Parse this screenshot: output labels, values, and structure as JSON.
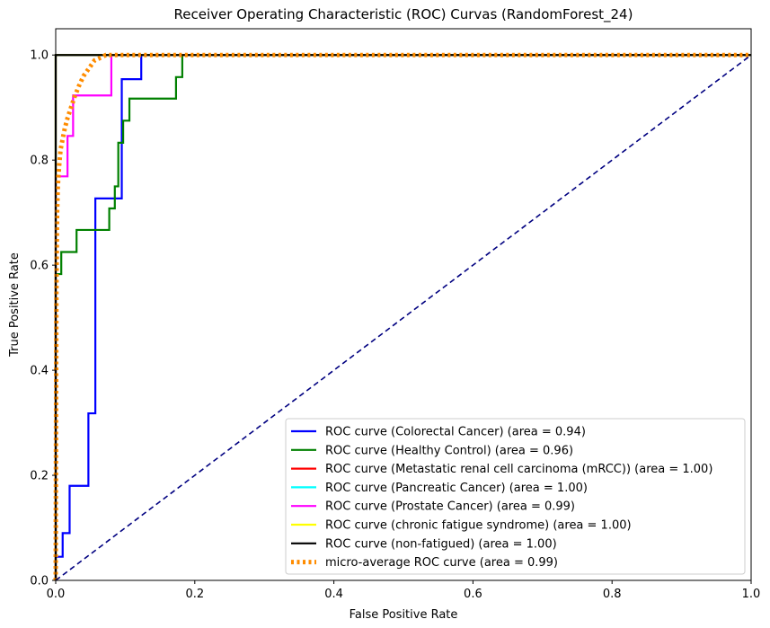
{
  "chart_data": {
    "type": "line",
    "title": "Receiver Operating Characteristic (ROC) Curvas (RandomForest_24)",
    "xlabel": "False Positive Rate",
    "ylabel": "True Positive Rate",
    "xlim": [
      0,
      1
    ],
    "ylim": [
      0,
      1.05
    ],
    "xticks": [
      "0.0",
      "0.2",
      "0.4",
      "0.6",
      "0.8",
      "1.0"
    ],
    "yticks": [
      "0.0",
      "0.2",
      "0.4",
      "0.6",
      "0.8",
      "1.0"
    ],
    "grid": false,
    "legend_position": "lower-right",
    "series": [
      {
        "name": "ROC curve (Colorectal Cancer) (area = 0.94)",
        "color": "#0000ff",
        "style": "solid",
        "x": [
          0,
          0,
          0.01,
          0.01,
          0.02,
          0.02,
          0.047,
          0.047,
          0.057,
          0.057,
          0.095,
          0.095,
          0.123,
          0.123,
          1
        ],
        "y": [
          0,
          0.045,
          0.045,
          0.09,
          0.09,
          0.18,
          0.18,
          0.318,
          0.318,
          0.727,
          0.727,
          0.954,
          0.954,
          1.0,
          1.0
        ]
      },
      {
        "name": "ROC curve (Healthy Control) (area = 0.96)",
        "color": "#008000",
        "style": "solid",
        "x": [
          0,
          0,
          0.008,
          0.008,
          0.03,
          0.03,
          0.077,
          0.077,
          0.085,
          0.085,
          0.09,
          0.09,
          0.097,
          0.097,
          0.106,
          0.106,
          0.173,
          0.173,
          0.182,
          0.182,
          1
        ],
        "y": [
          0,
          0.583,
          0.583,
          0.625,
          0.625,
          0.667,
          0.667,
          0.708,
          0.708,
          0.75,
          0.75,
          0.833,
          0.833,
          0.875,
          0.875,
          0.917,
          0.917,
          0.958,
          0.958,
          1.0,
          1.0
        ]
      },
      {
        "name": "ROC curve (Metastatic renal cell carcinoma (mRCC)) (area = 1.00)",
        "color": "#ff0000",
        "style": "solid",
        "x": [
          0,
          0,
          1
        ],
        "y": [
          0,
          1,
          1
        ]
      },
      {
        "name": "ROC curve (Pancreatic Cancer) (area = 1.00)",
        "color": "#00ffff",
        "style": "solid",
        "x": [
          0,
          0,
          1
        ],
        "y": [
          0,
          1,
          1
        ]
      },
      {
        "name": "ROC curve (Prostate Cancer) (area = 0.99)",
        "color": "#ff00ff",
        "style": "solid",
        "x": [
          0,
          0,
          0.017,
          0.017,
          0.025,
          0.025,
          0.08,
          0.08,
          1
        ],
        "y": [
          0,
          0.769,
          0.769,
          0.846,
          0.846,
          0.923,
          0.923,
          1.0,
          1.0
        ]
      },
      {
        "name": "ROC curve (chronic fatigue syndrome) (area = 1.00)",
        "color": "#ffff00",
        "style": "solid",
        "x": [
          0,
          0,
          1
        ],
        "y": [
          0,
          1,
          1
        ]
      },
      {
        "name": "ROC curve (non-fatigued) (area = 1.00)",
        "color": "#000000",
        "style": "solid",
        "x": [
          0,
          0,
          1
        ],
        "y": [
          0,
          1,
          1
        ]
      },
      {
        "name": "micro-average ROC curve (area = 0.99)",
        "color": "#ff8c00",
        "style": "dotted",
        "x": [
          0,
          0.0005,
          0.001,
          0.002,
          0.003,
          0.005,
          0.007,
          0.01,
          0.013,
          0.017,
          0.022,
          0.027,
          0.033,
          0.04,
          0.048,
          0.056,
          0.065,
          0.072,
          0.08,
          0.2,
          0.5,
          1.0
        ],
        "y": [
          0,
          0.3,
          0.55,
          0.7,
          0.75,
          0.79,
          0.82,
          0.84,
          0.86,
          0.88,
          0.9,
          0.92,
          0.94,
          0.96,
          0.975,
          0.99,
          0.995,
          1.0,
          1.0,
          1.0,
          1.0,
          1.0
        ]
      }
    ],
    "reference_line": {
      "color": "#000080",
      "style": "dashed",
      "x": [
        0,
        1
      ],
      "y": [
        0,
        1
      ]
    }
  }
}
